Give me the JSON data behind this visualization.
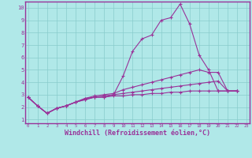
{
  "background_color": "#b0e8e8",
  "line_color": "#993399",
  "grid_color": "#aadddd",
  "xlabel": "Windchill (Refroidissement éolien,°C)",
  "xlabel_fontsize": 6,
  "yticks": [
    1,
    2,
    3,
    4,
    5,
    6,
    7,
    8,
    9,
    10
  ],
  "xticks": [
    0,
    1,
    2,
    3,
    4,
    5,
    6,
    7,
    8,
    9,
    10,
    11,
    12,
    13,
    14,
    15,
    16,
    17,
    18,
    19,
    20,
    21,
    22,
    23
  ],
  "xlim": [
    -0.3,
    23.3
  ],
  "ylim": [
    0.7,
    10.5
  ],
  "lines": [
    {
      "x": [
        0,
        1,
        2,
        3,
        4,
        5,
        6,
        7,
        8,
        9,
        10,
        11,
        12,
        13,
        14,
        15,
        16,
        17,
        18,
        19,
        20,
        21,
        22
      ],
      "y": [
        2.8,
        2.1,
        1.5,
        1.9,
        2.1,
        2.4,
        2.7,
        2.8,
        2.8,
        3.0,
        4.5,
        6.5,
        7.5,
        7.8,
        9.0,
        9.2,
        10.3,
        8.7,
        6.2,
        5.0,
        3.3,
        3.3,
        3.3
      ]
    },
    {
      "x": [
        0,
        1,
        2,
        3,
        4,
        5,
        6,
        7,
        8,
        9,
        10,
        11,
        12,
        13,
        14,
        15,
        16,
        17,
        18,
        19,
        20,
        21,
        22
      ],
      "y": [
        2.8,
        2.1,
        1.5,
        1.9,
        2.1,
        2.4,
        2.7,
        2.9,
        3.0,
        3.1,
        3.4,
        3.6,
        3.8,
        4.0,
        4.2,
        4.4,
        4.6,
        4.8,
        5.0,
        4.8,
        4.8,
        3.3,
        3.3
      ]
    },
    {
      "x": [
        0,
        1,
        2,
        3,
        4,
        5,
        6,
        7,
        8,
        9,
        10,
        11,
        12,
        13,
        14,
        15,
        16,
        17,
        18,
        19,
        20,
        21,
        22
      ],
      "y": [
        2.8,
        2.1,
        1.5,
        1.9,
        2.1,
        2.4,
        2.6,
        2.8,
        2.9,
        3.0,
        3.1,
        3.2,
        3.3,
        3.4,
        3.5,
        3.6,
        3.7,
        3.8,
        3.9,
        4.0,
        4.1,
        3.3,
        3.3
      ]
    },
    {
      "x": [
        0,
        1,
        2,
        3,
        4,
        5,
        6,
        7,
        8,
        9,
        10,
        11,
        12,
        13,
        14,
        15,
        16,
        17,
        18,
        19,
        20,
        21,
        22
      ],
      "y": [
        2.8,
        2.1,
        1.5,
        1.9,
        2.1,
        2.4,
        2.6,
        2.8,
        2.8,
        2.9,
        2.9,
        3.0,
        3.0,
        3.1,
        3.1,
        3.2,
        3.2,
        3.3,
        3.3,
        3.3,
        3.3,
        3.3,
        3.3
      ]
    }
  ]
}
